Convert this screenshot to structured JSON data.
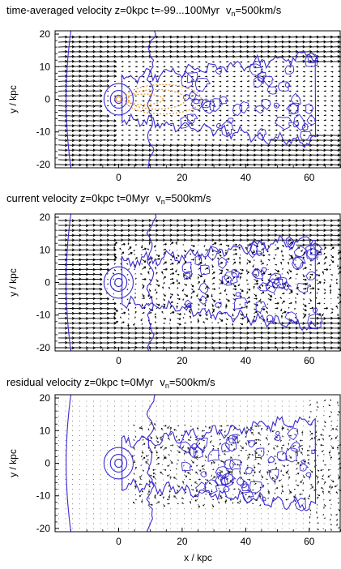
{
  "chart_data": [
    {
      "type": "vector-field",
      "title": "time-averaged velocity z=0kpc  t=-99...100Myr",
      "ref_label": "v",
      "ref_sub": "n",
      "ref_value": "=500km/s",
      "ylabel": "y / kpc",
      "xlabel": "",
      "xlim": [
        -20,
        70
      ],
      "ylim": [
        -21,
        21
      ],
      "xticks": [
        0,
        20,
        40,
        60
      ],
      "yticks": [
        -20,
        -10,
        0,
        10,
        20
      ],
      "field": "mean",
      "tail_contour": true
    },
    {
      "type": "vector-field",
      "title": "current velocity z=0kpc  t=0Myr",
      "ref_label": "v",
      "ref_sub": "n",
      "ref_value": "=500km/s",
      "ylabel": "y / kpc",
      "xlabel": "",
      "xlim": [
        -20,
        70
      ],
      "ylim": [
        -21,
        21
      ],
      "xticks": [
        0,
        20,
        40,
        60
      ],
      "yticks": [
        -20,
        -10,
        0,
        10,
        20
      ],
      "field": "current",
      "tail_contour": false
    },
    {
      "type": "vector-field",
      "title": "residual velocity z=0kpc  t=0Myr",
      "ref_label": "v",
      "ref_sub": "n",
      "ref_value": "=500km/s",
      "ylabel": "y / kpc",
      "xlabel": "x / kpc",
      "xlim": [
        -20,
        70
      ],
      "ylim": [
        -21,
        21
      ],
      "xticks": [
        0,
        20,
        40,
        60
      ],
      "yticks": [
        -20,
        -10,
        0,
        10,
        20
      ],
      "field": "residual",
      "tail_contour": false
    }
  ],
  "colors": {
    "contour": "#3a2bd0",
    "tail": "#e8962a",
    "arrow": "#000000"
  }
}
